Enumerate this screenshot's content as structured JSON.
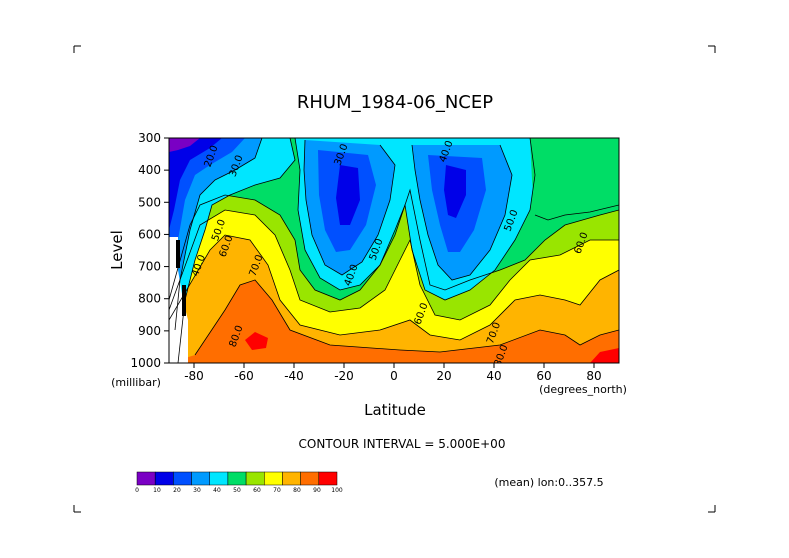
{
  "chart_data": {
    "type": "heatmap",
    "title": "RHUM_1984-06_NCEP",
    "xlabel": "Latitude",
    "ylabel": "Level",
    "x_units": "(degrees_north)",
    "y_units": "(millibar)",
    "xlim": [
      -90,
      90
    ],
    "ylim": [
      1000,
      300
    ],
    "x_ticks": [
      -80,
      -60,
      -40,
      -20,
      0,
      20,
      40,
      60,
      80
    ],
    "x_tick_labels": [
      "-80",
      "-60",
      "-40",
      "-20",
      "0",
      "20",
      "40",
      "60",
      "80"
    ],
    "y_ticks": [
      300,
      400,
      500,
      600,
      700,
      800,
      900,
      1000
    ],
    "y_tick_labels": [
      "300",
      "400",
      "500",
      "600",
      "700",
      "800",
      "900",
      "1000"
    ],
    "contour_interval_text": "CONTOUR INTERVAL = 5.000E+00",
    "mean_text": "(mean) lon:0..357.5",
    "contour_labels": [
      {
        "text": "20.0",
        "x": -72,
        "y": 360
      },
      {
        "text": "30.0",
        "x": -62,
        "y": 390
      },
      {
        "text": "30.0",
        "x": -20,
        "y": 355
      },
      {
        "text": "40.0",
        "x": 22,
        "y": 345
      },
      {
        "text": "50.0",
        "x": 48,
        "y": 560
      },
      {
        "text": "60.0",
        "x": 76,
        "y": 630
      },
      {
        "text": "40.0",
        "x": -77,
        "y": 700
      },
      {
        "text": "50.0",
        "x": -69,
        "y": 590
      },
      {
        "text": "60.0",
        "x": -66,
        "y": 640
      },
      {
        "text": "70.0",
        "x": -54,
        "y": 700
      },
      {
        "text": "40.0",
        "x": -16,
        "y": 730
      },
      {
        "text": "50.0",
        "x": -6,
        "y": 650
      },
      {
        "text": "60.0",
        "x": 12,
        "y": 850
      },
      {
        "text": "70.0",
        "x": 41,
        "y": 910
      },
      {
        "text": "80.0",
        "x": 44,
        "y": 980
      },
      {
        "text": "80.0",
        "x": -62,
        "y": 920
      }
    ],
    "colorbar": {
      "levels": [
        "0",
        "10",
        "20",
        "30",
        "40",
        "50",
        "60",
        "70",
        "80",
        "90",
        "100"
      ],
      "colors": [
        "#7a00c4",
        "#0000e8",
        "#0050ff",
        "#009aff",
        "#00e6ff",
        "#00dd66",
        "#99e500",
        "#ffff00",
        "#ffb400",
        "#ff6e00",
        "#ff0000"
      ]
    },
    "grid": false,
    "legend": "bottom-left colorbar"
  }
}
